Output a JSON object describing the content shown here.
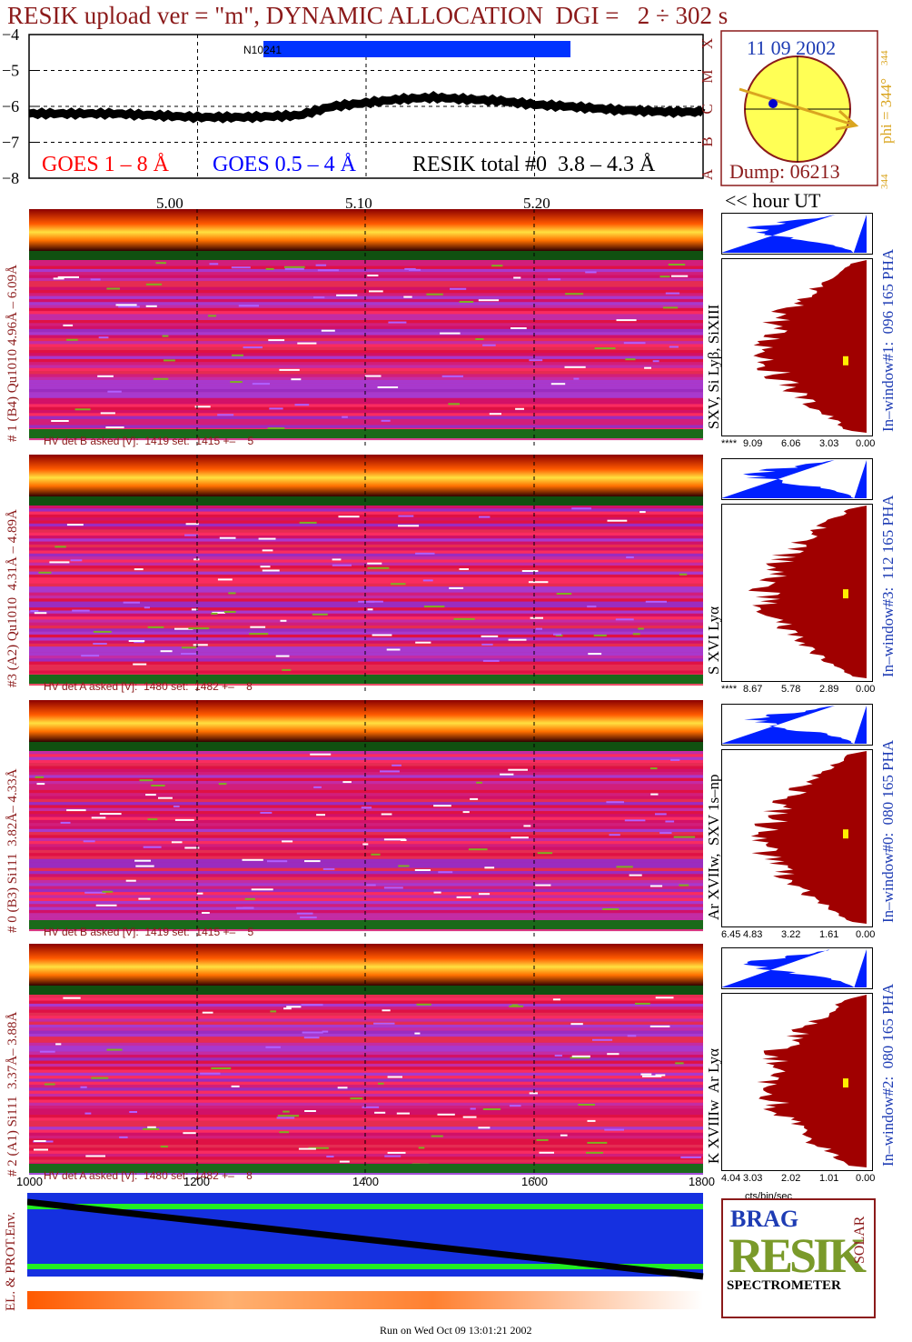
{
  "title": "RESIK upload ver = \"m\", DYNAMIC ALLOCATION  DGI =   2 ÷ 302 s",
  "goes": {
    "red_label": "GOES 1 – 8 Å",
    "blue_label": "GOES 0.5 – 4 Å",
    "total_label": "RESIK total #0  3.8 – 4.3 Å",
    "y_ticks": [
      "−4",
      "−5",
      "−6",
      "−7",
      "−8"
    ],
    "class_letters": [
      "X",
      "M",
      "C",
      "B",
      "A"
    ],
    "bar_label": "N10241",
    "colors": {
      "red": "#ff0000",
      "blue": "#0000ff",
      "black": "#000000",
      "title": "#8b1a1a"
    }
  },
  "chart_data": [
    {
      "type": "line",
      "title": "RESIK total #0  3.8 – 4.3 Å",
      "ylabel": "",
      "ylim": [
        -8,
        -4
      ],
      "x_time_ticks": [
        "5.00",
        "5.10",
        "5.20"
      ],
      "series": [
        {
          "name": "RESIK total #0  3.8 – 4.3 Å",
          "x": [
            4.9,
            4.95,
            5.0,
            5.03,
            5.06,
            5.08,
            5.1,
            5.12,
            5.14,
            5.16,
            5.18,
            5.2,
            5.22,
            5.25,
            5.28,
            5.3
          ],
          "values": [
            -6.2,
            -6.2,
            -6.3,
            -6.3,
            -6.25,
            -6.0,
            -5.9,
            -5.8,
            -5.75,
            -5.8,
            -5.85,
            -5.95,
            -6.0,
            -6.1,
            -6.15,
            -6.15
          ]
        }
      ]
    },
    {
      "type": "line",
      "title": "EL. & PROT.Env.",
      "x_ticks": [
        "1000",
        "1200",
        "1400",
        "1600",
        "1800"
      ],
      "xlim": [
        1000,
        1800
      ],
      "series": [
        {
          "values": [
            1,
            0
          ]
        }
      ]
    }
  ],
  "x_time_ticks": [
    "5.00",
    "5.10",
    "5.20"
  ],
  "hour_ut_label": "<< hour UT",
  "sun": {
    "date": "11 09 2002",
    "phi_label": "phi = 344°",
    "phi_small": "344",
    "phi_bottom": "344",
    "dump": "Dump: 06213",
    "phi_deg": 344
  },
  "detectors": [
    {
      "left_label": "# 1 (B4) Qu1010 4.96Å – 6.09Å",
      "mid_label": "SXV, Si Lyβ, SiXIII",
      "right_label": "In–window#1:  096 165 PHA",
      "hv_label": "HV det B asked [V]:  1419 set:  1415 +–    5",
      "axis": [
        "****",
        "9.09",
        "6.06",
        "3.03",
        "0.00"
      ],
      "marker_level": 0.55
    },
    {
      "left_label": "#3 (A2) Qu1010  4.31Å – 4.89Å",
      "mid_label": "S XVI Lyα",
      "right_label": "In–window#3:  112 165 PHA",
      "hv_label": "HV det A asked [V]:  1480 set:  1482 +–    8",
      "axis": [
        "****",
        "8.67",
        "5.78",
        "2.89",
        "0.00"
      ],
      "marker_level": 0.48
    },
    {
      "left_label": "# 0 (B3) Si111  3.82Å– 4.33Å",
      "mid_label": "Ar XVIIw,  SXV 1s–np",
      "right_label": "In–window#0:  080 165 PHA",
      "hv_label": "HV det B asked [V]:  1419 set:  1415 +–    5",
      "axis": [
        "6.45",
        "4.83",
        "3.22",
        "1.61",
        "0.00"
      ],
      "marker_level": 0.45
    },
    {
      "left_label": "# 2 (A1) Si111  3.37Å– 3.88Å",
      "mid_label": "K XVIIIw  Ar Lyα",
      "right_label": "In–window#2:  080 165 PHA",
      "hv_label": "HV det A asked [V]:  1480 set:  1482 +–    8",
      "axis": [
        "4.04",
        "3.03",
        "2.02",
        "1.01",
        "0.00"
      ],
      "marker_level": 0.48
    }
  ],
  "pha_unit": "cts/bin/sec",
  "channel_ticks": [
    "1000",
    "1200",
    "1400",
    "1600",
    "1800"
  ],
  "env_label": "EL. & PROT.Env.",
  "logo": {
    "line1": "BRAG",
    "line2": "RESIK",
    "line3": "SOLAR",
    "bottom": "SPECTROMETER"
  },
  "footer": "Run on Wed Oct 09 13:01:21 2002"
}
